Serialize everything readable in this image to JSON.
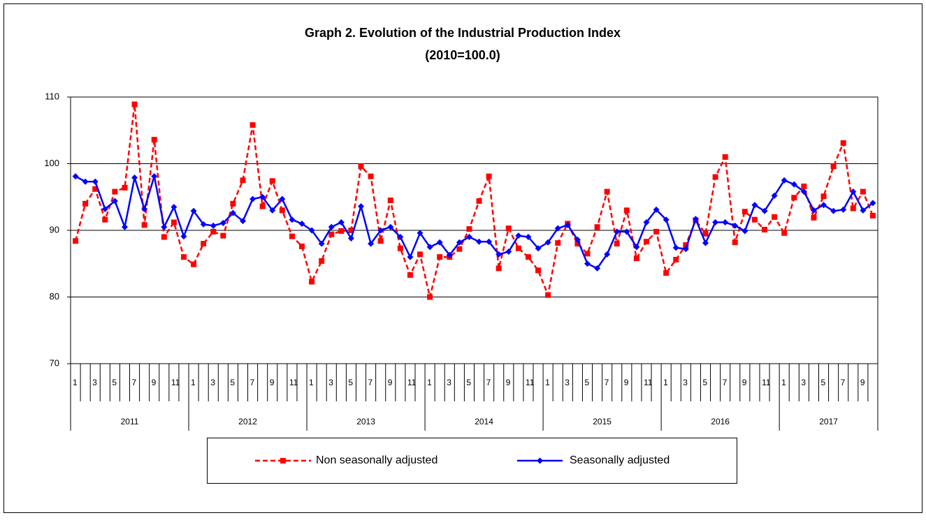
{
  "chart_data": {
    "type": "line",
    "title": "Graph 2. Evolution of the Industrial Production Index",
    "subtitle": "(2010=100.0)",
    "categories": [
      "1",
      null,
      "3",
      null,
      "5",
      null,
      "7",
      null,
      "9",
      null,
      "11",
      null,
      "1",
      null,
      "3",
      null,
      "5",
      null,
      "7",
      null,
      "9",
      null,
      "11",
      null,
      "1",
      null,
      "3",
      null,
      "5",
      null,
      "7",
      null,
      "9",
      null,
      "11",
      null,
      "1",
      null,
      "3",
      null,
      "5",
      null,
      "7",
      null,
      "9",
      null,
      "11",
      null,
      "1",
      null,
      "3",
      null,
      "5",
      null,
      "7",
      null,
      "9",
      null,
      "11",
      null,
      "1",
      null,
      "3",
      null,
      "5",
      null,
      "7",
      null,
      "9",
      null,
      "11",
      null,
      "1",
      null,
      "3",
      null,
      "5",
      null,
      "7",
      null,
      "9",
      null
    ],
    "years": [
      "2011",
      "2012",
      "2013",
      "2014",
      "2015",
      "2016",
      "2017"
    ],
    "series": [
      {
        "name": "Non seasonally adjusted",
        "color": "#ff0000",
        "dashed": true,
        "marker": "square",
        "values": [
          88.4,
          94,
          96.2,
          91.6,
          95.8,
          96.4,
          108.9,
          90.8,
          103.6,
          89,
          91.2,
          86,
          84.9,
          88,
          89.8,
          89.2,
          94,
          97.5,
          105.8,
          93.6,
          97.4,
          93,
          89.1,
          87.6,
          82.3,
          85.4,
          89.4,
          89.9,
          90,
          99.6,
          98.1,
          88.4,
          94.5,
          87.3,
          83.3,
          86.4,
          80,
          86,
          86,
          87.2,
          90.2,
          94.4,
          98.1,
          84.3,
          90.3,
          87.3,
          86,
          84,
          80.3,
          88.1,
          91,
          88,
          86.5,
          90.5,
          95.8,
          88,
          93,
          85.8,
          88.3,
          89.8,
          83.6,
          85.6,
          87.8,
          91.5,
          89.5,
          98,
          101,
          88.2,
          92.8,
          91.6,
          90.1,
          92,
          89.6,
          94.9,
          96.6,
          91.9,
          95.1,
          99.6,
          103.1,
          93.3,
          95.8,
          92.2
        ]
      },
      {
        "name": "Seasonally adjusted",
        "color": "#0000ff",
        "dashed": false,
        "marker": "diamond",
        "values": [
          98.1,
          97.3,
          97.3,
          93.2,
          94.4,
          90.5,
          97.9,
          93.2,
          98.1,
          90.5,
          93.5,
          89.1,
          92.9,
          90.9,
          90.7,
          91.1,
          92.6,
          91.4,
          94.7,
          95,
          93,
          94.7,
          91.6,
          91,
          90,
          88,
          90.5,
          91.2,
          88.8,
          93.6,
          88,
          90,
          90.5,
          89,
          86,
          89.6,
          87.5,
          88.2,
          86.3,
          88.2,
          89,
          88.3,
          88.3,
          86.4,
          86.8,
          89.2,
          89,
          87.3,
          88.2,
          90.3,
          90.8,
          88.6,
          85,
          84.3,
          86.4,
          89.8,
          89.8,
          87.5,
          91.2,
          93.1,
          91.6,
          87.4,
          87.2,
          91.7,
          88.1,
          91.2,
          91.2,
          90.7,
          89.9,
          93.8,
          92.9,
          95.2,
          97.5,
          96.9,
          95.8,
          93,
          93.8,
          92.9,
          93.1,
          95.8,
          93,
          94.1
        ]
      }
    ],
    "ylim": [
      70,
      110
    ],
    "yticks": [
      70,
      80,
      90,
      100,
      110
    ],
    "grid": true
  }
}
